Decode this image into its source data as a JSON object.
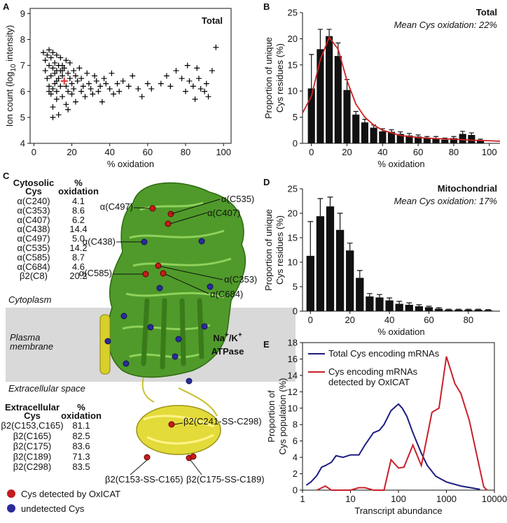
{
  "chart_data": [
    {
      "panel": "A",
      "type": "scatter",
      "title": "Total",
      "xlabel": "% oxidation",
      "ylabel_parts": [
        "Ion count (log",
        "10",
        " intensity)"
      ],
      "xlim": [
        -2,
        104
      ],
      "xticks": [
        0,
        20,
        40,
        60,
        80,
        100
      ],
      "ylim": [
        4,
        9.2
      ],
      "yticks": [
        4,
        5,
        6,
        7,
        8,
        9
      ],
      "marker_color": "#000000",
      "x": [
        5,
        6,
        6,
        7,
        7,
        8,
        8,
        8,
        9,
        9,
        9,
        10,
        10,
        10,
        10,
        11,
        11,
        11,
        12,
        12,
        12,
        12,
        13,
        13,
        13,
        14,
        14,
        14,
        15,
        15,
        15,
        16,
        16,
        17,
        17,
        17,
        18,
        18,
        19,
        19,
        20,
        20,
        21,
        21,
        22,
        22,
        23,
        24,
        25,
        25,
        26,
        27,
        28,
        29,
        30,
        31,
        32,
        33,
        34,
        35,
        36,
        37,
        38,
        40,
        41,
        42,
        44,
        45,
        47,
        50,
        52,
        55,
        57,
        60,
        62,
        67,
        70,
        72,
        75,
        78,
        80,
        81,
        82,
        84,
        85,
        86,
        87,
        88,
        90,
        91,
        92,
        94,
        96,
        12,
        15,
        18,
        8,
        10
      ],
      "values": [
        7.5,
        6.8,
        7.2,
        6.5,
        7.4,
        6.2,
        7.0,
        7.6,
        6.6,
        5.9,
        7.3,
        6.9,
        6.1,
        5.4,
        7.5,
        6.7,
        6.3,
        7.1,
        6.0,
        6.8,
        5.7,
        7.4,
        6.5,
        7.0,
        5.1,
        6.2,
        6.8,
        7.3,
        6.6,
        5.8,
        7.0,
        6.4,
        6.9,
        6.2,
        7.2,
        5.5,
        6.7,
        6.0,
        6.5,
        7.1,
        6.3,
        5.9,
        6.8,
        6.1,
        6.6,
        5.6,
        6.4,
        6.9,
        6.0,
        6.5,
        6.2,
        5.8,
        6.7,
        6.3,
        6.1,
        5.9,
        6.6,
        6.4,
        6.0,
        6.2,
        5.6,
        6.5,
        6.3,
        6.1,
        6.7,
        5.9,
        6.3,
        6.0,
        6.4,
        6.2,
        6.6,
        6.1,
        5.8,
        6.3,
        6.1,
        6.3,
        6.6,
        6.2,
        6.8,
        6.5,
        6.0,
        7.0,
        6.4,
        6.2,
        5.7,
        6.9,
        6.5,
        6.1,
        6.0,
        6.3,
        5.8,
        6.8,
        7.7,
        6.4,
        6.8,
        5.3,
        6.0,
        5.0
      ],
      "mean_point": {
        "x": 16,
        "y": 6.4,
        "color": "#e03030"
      }
    },
    {
      "panel": "B",
      "type": "bar",
      "title": "Total",
      "subtitle": "Mean Cys oxidation: 22%",
      "xlabel": "% oxidation",
      "ylabel": [
        "Proportion of unique",
        "Cys residues (%)"
      ],
      "xlim": [
        -5,
        106
      ],
      "xticks": [
        0,
        20,
        40,
        60,
        80,
        100
      ],
      "ylim": [
        0,
        25
      ],
      "yticks": [
        0,
        5,
        10,
        15,
        20,
        25
      ],
      "color": "#111111",
      "x": [
        0,
        5,
        10,
        15,
        20,
        25,
        30,
        35,
        40,
        45,
        50,
        55,
        60,
        65,
        70,
        75,
        80,
        85,
        90,
        95
      ],
      "values": [
        10.5,
        18,
        20.5,
        16.7,
        10.2,
        5.5,
        4,
        3,
        2.3,
        2.2,
        1.8,
        1.5,
        1.3,
        1,
        1,
        0.7,
        1,
        1.8,
        1.6,
        0.5
      ],
      "errors": [
        6.5,
        3.8,
        1.3,
        2.5,
        2,
        0.6,
        0.6,
        0.5,
        0.5,
        0.4,
        0.4,
        0.4,
        0.3,
        0.3,
        0.3,
        0.3,
        0.3,
        0.5,
        0.4,
        0.3
      ],
      "fit": {
        "color": "#cc2222",
        "x": [
          -5,
          0,
          5,
          10,
          15,
          20,
          25,
          30,
          35,
          40,
          50,
          60,
          70,
          80,
          90,
          100,
          106
        ],
        "values": [
          5.8,
          9,
          16,
          20.3,
          18,
          12,
          7.5,
          5,
          3.5,
          2.5,
          1.5,
          1.1,
          0.9,
          0.8,
          0.6,
          0.5,
          0.4
        ]
      }
    },
    {
      "panel": "D",
      "type": "bar",
      "title": "Mitochondrial",
      "subtitle": "Mean Cys oxidation: 17%",
      "xlabel": "% oxidation",
      "ylabel": [
        "Proportion of unique",
        "Cys residues (%)"
      ],
      "xlim": [
        -4,
        96
      ],
      "xticks": [
        0,
        20,
        40,
        60,
        80
      ],
      "ylim": [
        0,
        25
      ],
      "yticks": [
        0,
        5,
        10,
        15,
        20,
        25
      ],
      "color": "#111111",
      "x": [
        0,
        5,
        10,
        15,
        20,
        25,
        30,
        35,
        40,
        45,
        50,
        55,
        60,
        65,
        70,
        75,
        80,
        85,
        90
      ],
      "values": [
        11.3,
        19.4,
        21.4,
        16.6,
        12.4,
        6.8,
        3,
        2.8,
        2.2,
        1.5,
        1.3,
        1,
        0.8,
        0.5,
        0.3,
        0.3,
        0.3,
        0.3,
        0.2
      ],
      "errors": [
        7,
        3.6,
        1.9,
        3.4,
        1.5,
        1.5,
        0.6,
        0.6,
        0.5,
        0.5,
        0.4,
        0.3,
        0.2,
        0.2,
        0.1,
        0.1,
        0.1,
        0.1,
        0.1
      ]
    },
    {
      "panel": "E",
      "type": "line",
      "xlabel": "Transcript abundance",
      "ylabel": [
        "Proportion of",
        "Cys population (%)"
      ],
      "log_x": true,
      "xlim": [
        1,
        10000
      ],
      "xticks": [
        1,
        10,
        100,
        1000,
        10000
      ],
      "ylim": [
        0,
        18
      ],
      "yticks": [
        0,
        2,
        4,
        6,
        8,
        10,
        12,
        14,
        16,
        18
      ],
      "series": [
        {
          "name": "Total Cys encoding mRNAs",
          "color": "#1c1c80",
          "x": [
            1.2,
            1.5,
            2,
            2.5,
            3,
            4,
            5,
            7,
            10,
            15,
            20,
            30,
            40,
            50,
            70,
            100,
            120,
            150,
            200,
            300,
            400,
            600,
            1000,
            2000,
            5000
          ],
          "values": [
            0.6,
            1,
            1.8,
            2.8,
            3,
            3.4,
            4.2,
            4,
            4.3,
            4.3,
            5.5,
            7,
            7.3,
            8,
            9.7,
            10.5,
            10,
            9,
            7,
            4.5,
            3,
            1.7,
            1,
            0.5,
            0.1
          ]
        },
        {
          "name": "Cys encoding mRNAs detected by OxICAT",
          "color": "#c8202a",
          "x": [
            2,
            3,
            4,
            10,
            15,
            20,
            30,
            50,
            70,
            100,
            130,
            200,
            300,
            500,
            700,
            1000,
            1500,
            2000,
            3000,
            5000,
            6000,
            7000
          ],
          "values": [
            0,
            0.5,
            0,
            0,
            0.3,
            0.3,
            0,
            0,
            3.7,
            2.7,
            2.8,
            5.5,
            3,
            9.5,
            10,
            16.3,
            13,
            11.8,
            8.5,
            2.5,
            0.4,
            0
          ]
        }
      ]
    }
  ],
  "panel_c": {
    "panel": "C",
    "cytosolic_table": {
      "header": [
        [
          "Cytosolic",
          "Cys"
        ],
        [
          "%",
          "oxidation"
        ]
      ],
      "rows": [
        [
          "α(C240)",
          "4.1"
        ],
        [
          "α(C353)",
          "8.6"
        ],
        [
          "α(C407)",
          "6.2"
        ],
        [
          "α(C438)",
          "14.4"
        ],
        [
          "α(C497)",
          "5.0"
        ],
        [
          "α(C535)",
          "14.2"
        ],
        [
          "α(C585)",
          "8.7"
        ],
        [
          "α(C684)",
          "4.6"
        ],
        [
          "β2(C8)",
          "20.2"
        ]
      ]
    },
    "extracellular_table": {
      "header": [
        [
          "Extracellular",
          "Cys"
        ],
        [
          "%",
          "oxidation"
        ]
      ],
      "rows": [
        [
          "β2(C153,C165)",
          "81.1"
        ],
        [
          "β2(C165)",
          "82.5"
        ],
        [
          "β2(C175)",
          "83.6"
        ],
        [
          "β2(C189)",
          "71.3"
        ],
        [
          "β2(C298)",
          "83.5"
        ]
      ]
    },
    "regions": {
      "cytoplasm": "Cytoplasm",
      "membrane": [
        "Plasma",
        "membrane"
      ],
      "extracellular": "Extracellular space"
    },
    "enzyme": {
      "line1": [
        "Na",
        "+",
        "/K",
        "+"
      ],
      "line2": "ATPase"
    },
    "site_labels": [
      "α(C535)",
      "α(C497)",
      "α(C407)",
      "α(C438)",
      "α(C585)",
      "α(C353)",
      "α(C684)",
      "β2(C241-SS-C298)",
      "β2(C153-SS-C165)",
      "β2(C175-SS-C189)"
    ],
    "legend": [
      "Cys detected by OxICAT",
      "undetected Cys"
    ]
  }
}
